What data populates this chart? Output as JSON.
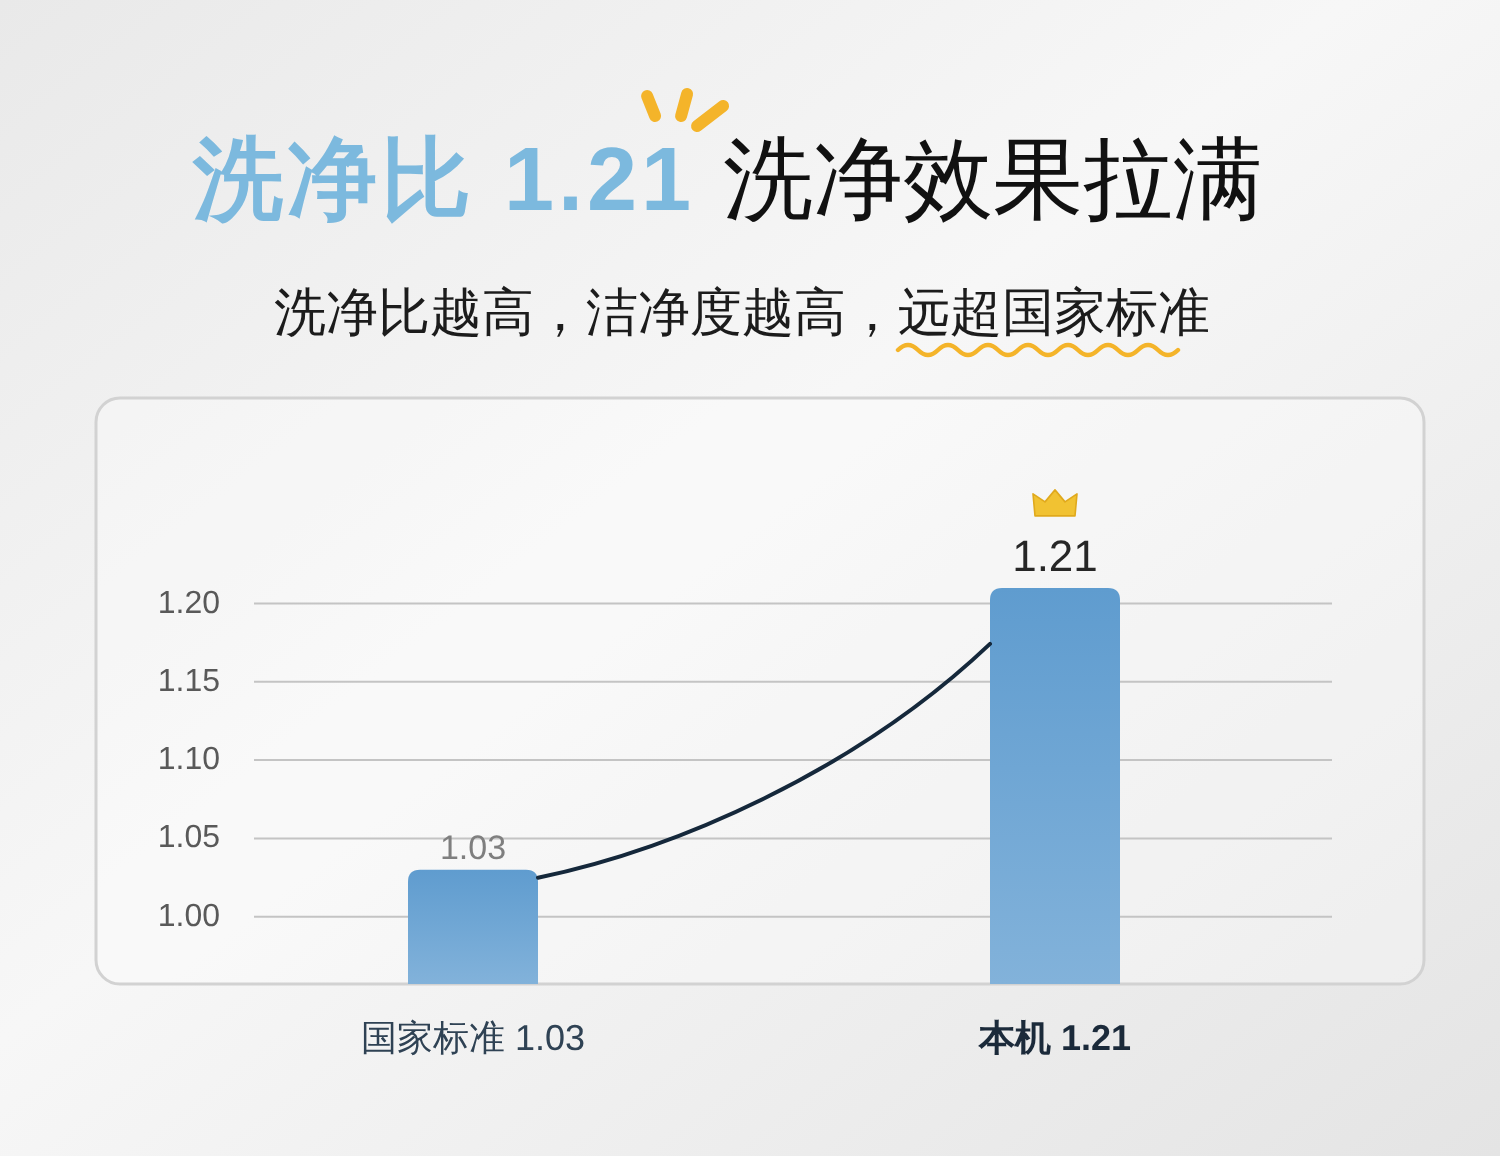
{
  "chart_data": {
    "type": "bar",
    "title": "洗净比 1.21",
    "subtitle": "洗净效果拉满",
    "annotations": [
      "洗净比越高，洁净度越高，",
      "远超国家标准"
    ],
    "categories": [
      "国家标准 1.03",
      "本机 1.21"
    ],
    "series": [
      {
        "color": "#5f9ccf",
        "values": [
          1.03,
          1.21
        ],
        "value_labels": [
          "1.03",
          "1.21"
        ]
      }
    ],
    "ylim": [
      0.957,
      1.33
    ],
    "yticks": [
      {
        "value": 1,
        "label": "1.00"
      },
      1.05,
      {
        "value": 1.1,
        "label": "1.10"
      },
      1.15,
      {
        "value": 1.2,
        "label": "1.20"
      }
    ],
    "grid": "y"
  }
}
